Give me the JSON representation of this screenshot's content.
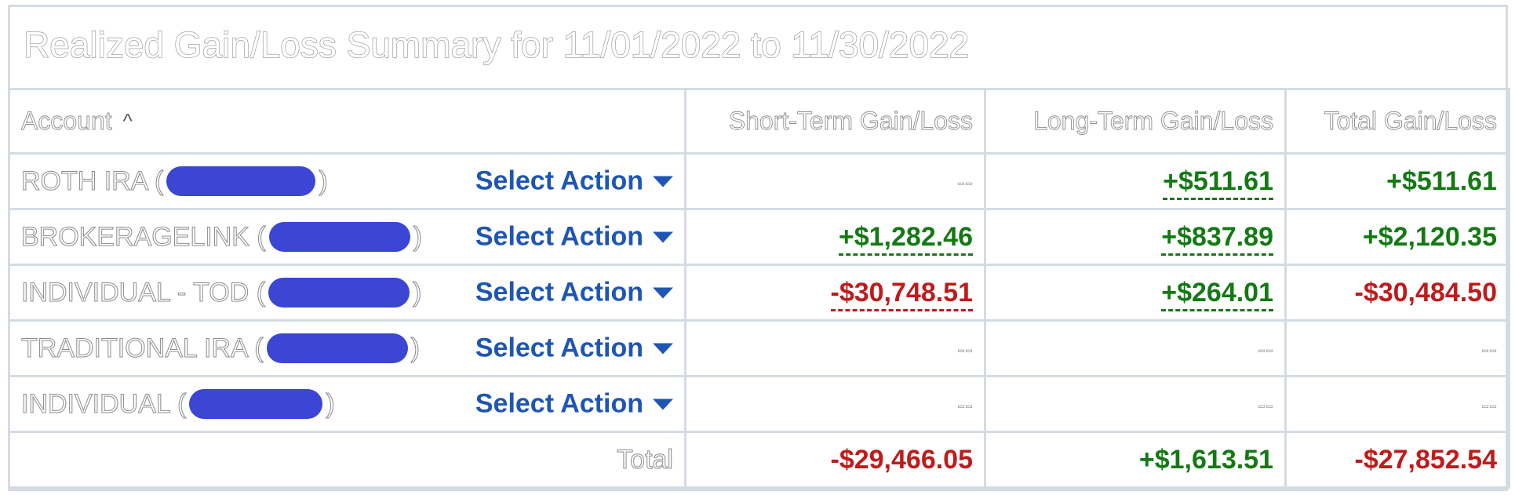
{
  "title": "Realized Gain/Loss Summary for 11/01/2022 to 11/30/2022",
  "columns": {
    "account": "Account",
    "short_term": "Short-Term Gain/Loss",
    "long_term": "Long-Term Gain/Loss",
    "total": "Total Gain/Loss"
  },
  "action_label": "Select Action",
  "colors": {
    "positive": "#137a13",
    "negative": "#c11a1a",
    "link": "#1f56b4",
    "redaction": "#3b46d4",
    "border": "#d5dbe3"
  },
  "rows": [
    {
      "name": "ROTH IRA (",
      "close": ")",
      "short_term": "--",
      "long_term": "+$511.61",
      "total": "+$511.61"
    },
    {
      "name": "BROKERAGELINK (",
      "close": ")",
      "short_term": "+$1,282.46",
      "long_term": "+$837.89",
      "total": "+$2,120.35"
    },
    {
      "name": "INDIVIDUAL - TOD (",
      "close": ")",
      "short_term": "-$30,748.51",
      "long_term": "+$264.01",
      "total": "-$30,484.50"
    },
    {
      "name": "TRADITIONAL IRA (",
      "close": ")",
      "short_term": "--",
      "long_term": "--",
      "total": "--"
    },
    {
      "name": "INDIVIDUAL (",
      "close": ")",
      "short_term": "--",
      "long_term": "--",
      "total": "--"
    }
  ],
  "totals": {
    "label": "Total",
    "short_term": "-$29,466.05",
    "long_term": "+$1,613.51",
    "total": "-$27,852.54"
  }
}
